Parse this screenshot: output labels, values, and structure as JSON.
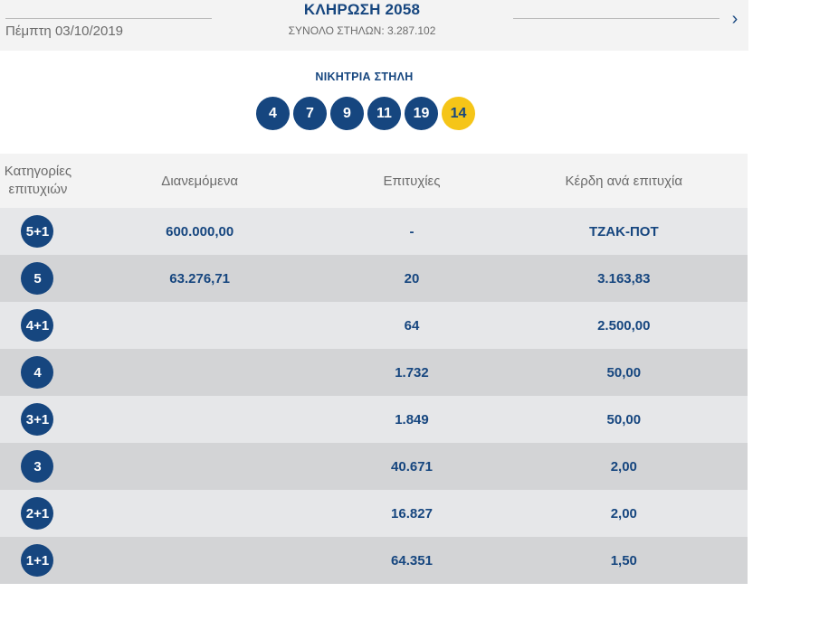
{
  "header": {
    "date": "Πέμπτη 03/10/2019",
    "title": "ΚΛΗΡΩΣΗ 2058",
    "subtitle": "ΣΥΝΟΛΟ ΣΤΗΛΩΝ: 3.287.102",
    "next_icon": "chevron-right-icon"
  },
  "winning": {
    "label": "ΝΙΚΗΤΡΙΑ ΣΤΗΛΗ",
    "numbers": [
      "4",
      "7",
      "9",
      "11",
      "19"
    ],
    "joker": "14"
  },
  "table": {
    "headers": {
      "category": "Κατηγορίες επιτυχιών",
      "distributed": "Διανεμόμενα",
      "winners": "Επιτυχίες",
      "prize": "Κέρδη ανά επιτυχία"
    },
    "rows": [
      {
        "category": "5+1",
        "distributed": "600.000,00",
        "winners": "-",
        "prize": "ΤΖΑΚ-ΠΟΤ"
      },
      {
        "category": "5",
        "distributed": "63.276,71",
        "winners": "20",
        "prize": "3.163,83"
      },
      {
        "category": "4+1",
        "distributed": "",
        "winners": "64",
        "prize": "2.500,00"
      },
      {
        "category": "4",
        "distributed": "",
        "winners": "1.732",
        "prize": "50,00"
      },
      {
        "category": "3+1",
        "distributed": "",
        "winners": "1.849",
        "prize": "50,00"
      },
      {
        "category": "3",
        "distributed": "",
        "winners": "40.671",
        "prize": "2,00"
      },
      {
        "category": "2+1",
        "distributed": "",
        "winners": "16.827",
        "prize": "2,00"
      },
      {
        "category": "1+1",
        "distributed": "",
        "winners": "64.351",
        "prize": "1,50"
      }
    ]
  },
  "colors": {
    "primary": "#16467f",
    "joker": "#f5c518",
    "row_light": "#e6e7e9",
    "row_dark": "#d3d4d6"
  }
}
